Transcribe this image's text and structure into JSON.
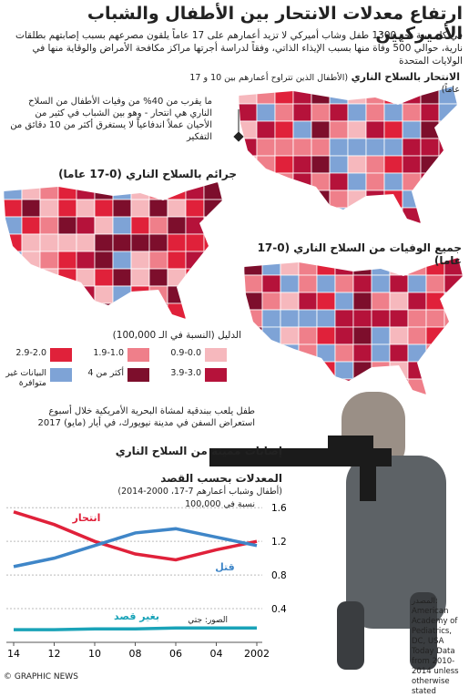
{
  "header": {
    "title": "ارتفاع معدلات الانتحار بين الأطفال والشباب الأميركيين",
    "intro": "في كل سنة نحو 1300 طفل وشاب أميركي لا تزيد أعمارهم على 17 عاماً يلقون مصرعهم بسبب إصابتهم بطلقات نارية، حوالي 500 وفاة منها بسبب الإيذاء الذاتي، وفقاً لدراسة أجرتها مراكز مكافحة الأمراض والوقاية منها في الولايات المتحدة"
  },
  "maps": [
    {
      "title": "الانتحار بالسلاح الناري",
      "subtitle": "(الأطفال الذين تتراوح أعمارهم بين 10 و 17 عاماً)"
    },
    {
      "title": "جرائم بالسلاح الناري (0-17 عاما)"
    },
    {
      "title": "جميع الوفيات من السلاح الناري (0-17 عاما)"
    }
  ],
  "note": "ما يقرب من 40% من وفيات الأطفال من السلاح الناري هي انتحار - وهو بين الشباب في كثير من الأحيان عملاً اندفاعياً لا يستغرق أكثر من 10 دقائق من التفكير",
  "legend": {
    "title": "الدليل (النسبة في الـ 100,000)",
    "items": [
      {
        "label": "0.9-0.0",
        "color": "#f6b8bd"
      },
      {
        "label": "1.9-1.0",
        "color": "#ef7f8a"
      },
      {
        "label": "2.9-2.0",
        "color": "#e0213a"
      },
      {
        "label": "3.9-3.0",
        "color": "#b5123a"
      },
      {
        "label": "أكثر من 4",
        "color": "#7d0e2c"
      },
      {
        "label": "البيانات غير متوافرة",
        "color": "#7ea3d6"
      }
    ]
  },
  "caption": "طفل يلعب ببندقية لمشاة البحرية الأمريكية خلال أسبوع استعراض السفن في مدينة نيويورك، في أيار (مايو) 2017",
  "credit": "الصور: جتي",
  "source": "المصدر: American Academy of Pediatrics, DC, USA Today Data from 2010-2014 unless otherwise stated",
  "footer": "© GRAPHIC NEWS",
  "chart_data": {
    "type": "line",
    "section_title": "إصابات مميتة من السلاح الناري",
    "title": "المعدلات بحسب القصد",
    "subtitle": "(أطفال وشباب أعمارهم 7-17، 2000-2014)",
    "y_label": "نسبة في 100,000",
    "categories": [
      "14",
      "12",
      "10",
      "08",
      "06",
      "04",
      "2002"
    ],
    "series": [
      {
        "name": "انتحار",
        "color": "#e0213a",
        "values": [
          1.55,
          1.4,
          1.2,
          1.05,
          0.98,
          1.1,
          1.2
        ]
      },
      {
        "name": "قتل",
        "color": "#3f86c8",
        "values": [
          0.9,
          1.0,
          1.15,
          1.3,
          1.35,
          1.25,
          1.15
        ]
      },
      {
        "name": "بغير قصد",
        "color": "#1aa3b8",
        "values": [
          0.15,
          0.15,
          0.16,
          0.16,
          0.17,
          0.17,
          0.17
        ]
      }
    ],
    "ylim": [
      0,
      1.7
    ],
    "yticks": [
      0.4,
      0.8,
      1.2,
      1.6
    ],
    "grid": true
  }
}
